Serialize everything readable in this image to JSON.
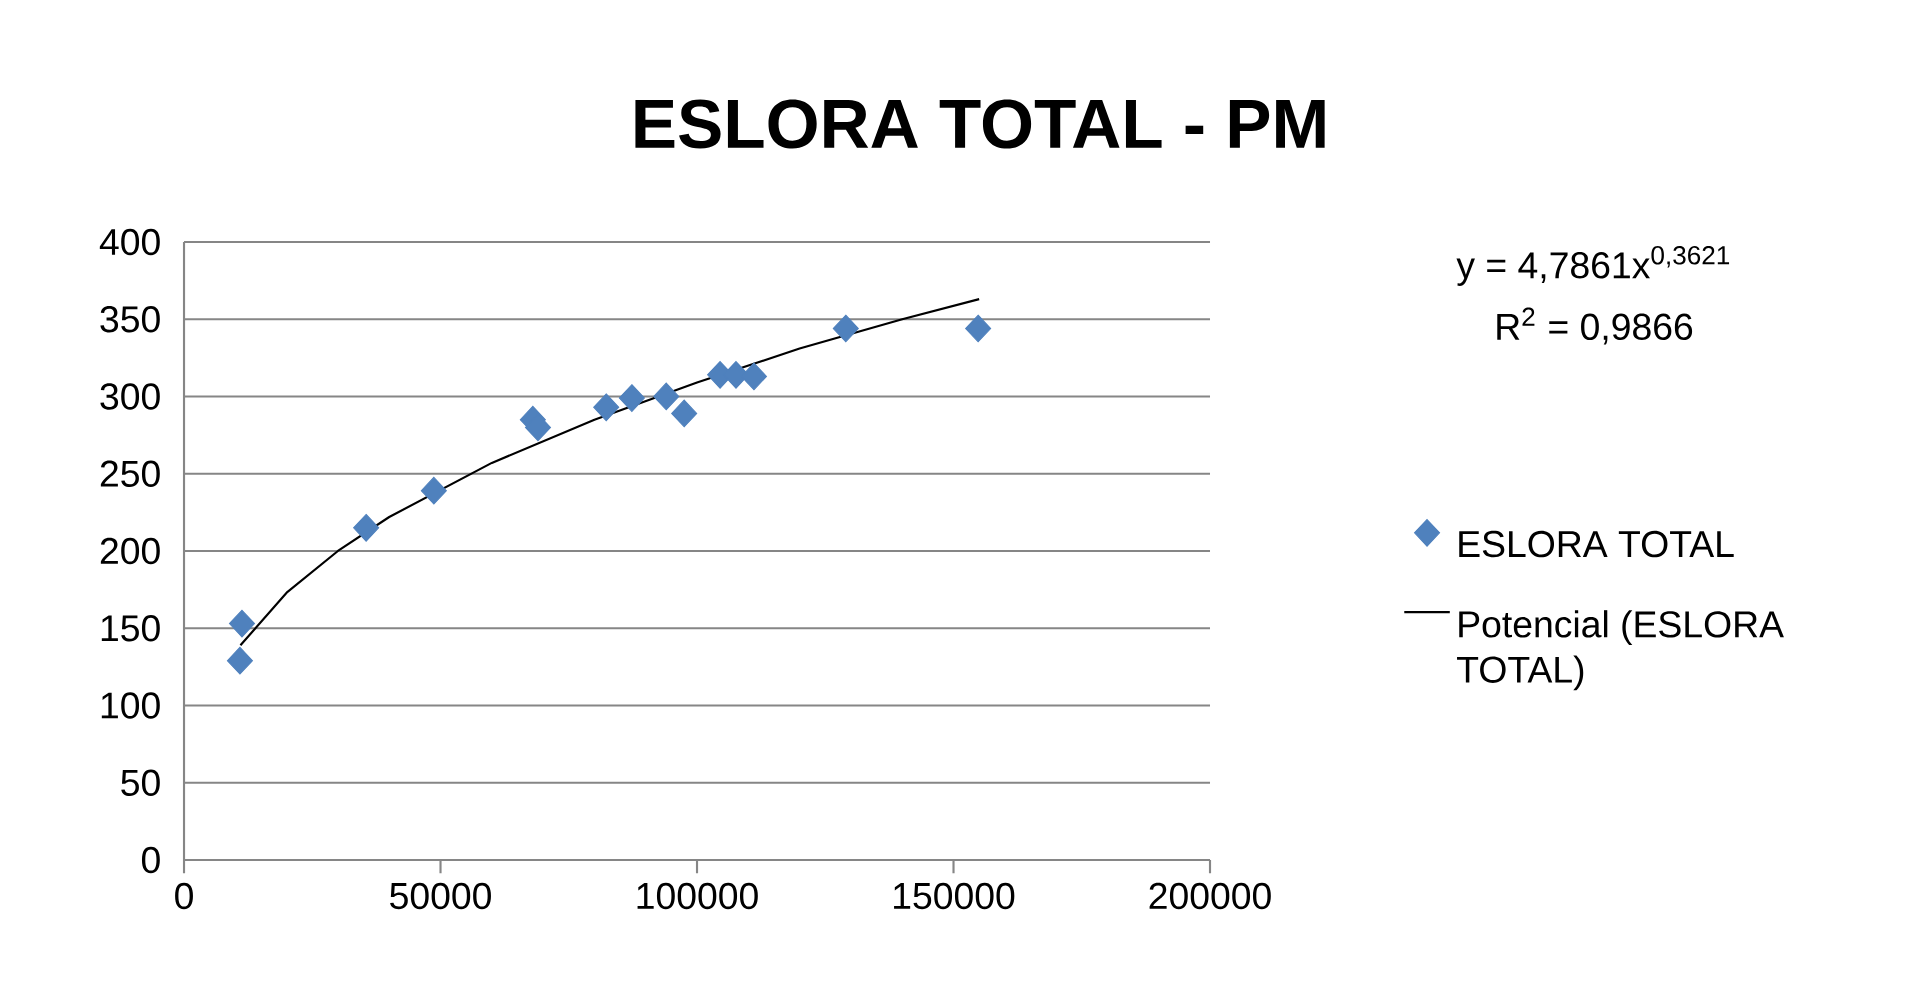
{
  "chart_data": {
    "type": "scatter",
    "title": "ESLORA TOTAL - PM",
    "annotations": [
      "y = 4,7861x$^{0,3621}$",
      "R$^{2}$ = 0,9866"
    ],
    "xlim": [
      0,
      200000
    ],
    "xticks": [
      0,
      50000,
      100000,
      150000,
      200000
    ],
    "ylim": [
      0,
      400
    ],
    "yticks": [
      0,
      50,
      100,
      150,
      200,
      250,
      300,
      350,
      400
    ],
    "grid": "y",
    "legend": "right",
    "series": [
      {
        "name": "ESLORA TOTAL",
        "marker": "diamond",
        "color": "#4f81bd",
        "x": [
          10900,
          11300,
          35500,
          48700,
          68000,
          69000,
          82300,
          87300,
          94000,
          97500,
          104500,
          107600,
          111100,
          129000,
          154800
        ],
        "values": [
          129,
          153,
          215,
          239,
          285,
          280,
          293,
          299,
          300,
          289,
          314,
          314,
          313,
          344,
          344
        ]
      },
      {
        "name": "Potencial (ESLORA TOTAL)",
        "type": "line",
        "marker": "none",
        "line_style": "solid",
        "color": "#000000",
        "x": [
          11000,
          20000,
          30000,
          40000,
          60000,
          80000,
          100000,
          120000,
          140000,
          155000
        ],
        "values": [
          139,
          173,
          200,
          222,
          257,
          285,
          309,
          331,
          350,
          363
        ]
      }
    ]
  }
}
